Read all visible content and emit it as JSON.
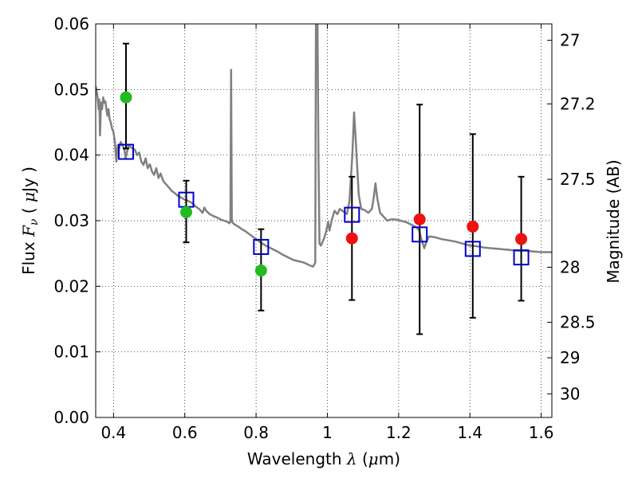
{
  "chart_data": {
    "type": "scatter",
    "xlabel_text": "Wavelength",
    "xlabel_symbol": "λ",
    "xlabel_unit_open": "(",
    "xlabel_unit_mu": "μ",
    "xlabel_unit_rest": "m)",
    "ylabel_text": "Flux",
    "ylabel_symbol_main": "F",
    "ylabel_symbol_sub": "ν",
    "ylabel_unit_open": "(",
    "ylabel_unit_mu": "μ",
    "ylabel_unit_rest": "Jy )",
    "y2label": "Magnitude (AB)",
    "xlim": [
      0.35,
      1.63
    ],
    "ylim": [
      0.0,
      0.06
    ],
    "grid": true,
    "x_ticks": [
      {
        "value": 0.4,
        "label": "0.4"
      },
      {
        "value": 0.6,
        "label": "0.6"
      },
      {
        "value": 0.8,
        "label": "0.8"
      },
      {
        "value": 1.0,
        "label": "1"
      },
      {
        "value": 1.2,
        "label": "1.2"
      },
      {
        "value": 1.4,
        "label": "1.4"
      },
      {
        "value": 1.6,
        "label": "1.6"
      }
    ],
    "y_ticks": [
      {
        "value": 0.0,
        "label": "0.00"
      },
      {
        "value": 0.01,
        "label": "0.01"
      },
      {
        "value": 0.02,
        "label": "0.02"
      },
      {
        "value": 0.03,
        "label": "0.03"
      },
      {
        "value": 0.04,
        "label": "0.04"
      },
      {
        "value": 0.05,
        "label": "0.05"
      },
      {
        "value": 0.06,
        "label": "0.06"
      }
    ],
    "y2_ticks": [
      {
        "label": "27",
        "flux": 0.0575
      },
      {
        "label": "27.2",
        "flux": 0.0478
      },
      {
        "label": "27.5",
        "flux": 0.0363
      },
      {
        "label": "28",
        "flux": 0.0229
      },
      {
        "label": "28.5",
        "flux": 0.0145
      },
      {
        "label": "29",
        "flux": 0.0091
      },
      {
        "label": "30",
        "flux": 0.0036
      }
    ],
    "model_spectrum": {
      "color": "#808080",
      "points": [
        [
          0.35,
          0.0505
        ],
        [
          0.355,
          0.049
        ],
        [
          0.358,
          0.047
        ],
        [
          0.36,
          0.0485
        ],
        [
          0.362,
          0.043
        ],
        [
          0.365,
          0.048
        ],
        [
          0.368,
          0.047
        ],
        [
          0.371,
          0.0488
        ],
        [
          0.374,
          0.048
        ],
        [
          0.377,
          0.0482
        ],
        [
          0.38,
          0.047
        ],
        [
          0.383,
          0.046
        ],
        [
          0.386,
          0.047
        ],
        [
          0.389,
          0.0455
        ],
        [
          0.392,
          0.045
        ],
        [
          0.396,
          0.044
        ],
        [
          0.4,
          0.0435
        ],
        [
          0.404,
          0.042
        ],
        [
          0.408,
          0.039
        ],
        [
          0.412,
          0.0415
        ],
        [
          0.416,
          0.041
        ],
        [
          0.42,
          0.042
        ],
        [
          0.425,
          0.0415
        ],
        [
          0.43,
          0.041
        ],
        [
          0.434,
          0.0395
        ],
        [
          0.438,
          0.0405
        ],
        [
          0.442,
          0.0415
        ],
        [
          0.448,
          0.0412
        ],
        [
          0.454,
          0.041
        ],
        [
          0.46,
          0.0408
        ],
        [
          0.466,
          0.04
        ],
        [
          0.472,
          0.0404
        ],
        [
          0.478,
          0.039
        ],
        [
          0.484,
          0.0385
        ],
        [
          0.49,
          0.0395
        ],
        [
          0.496,
          0.038
        ],
        [
          0.502,
          0.0386
        ],
        [
          0.508,
          0.0375
        ],
        [
          0.514,
          0.037
        ],
        [
          0.52,
          0.038
        ],
        [
          0.526,
          0.0365
        ],
        [
          0.532,
          0.0372
        ],
        [
          0.54,
          0.036
        ],
        [
          0.548,
          0.0355
        ],
        [
          0.556,
          0.035
        ],
        [
          0.564,
          0.0345
        ],
        [
          0.572,
          0.0342
        ],
        [
          0.58,
          0.0338
        ],
        [
          0.59,
          0.0335
        ],
        [
          0.6,
          0.0332
        ],
        [
          0.61,
          0.033
        ],
        [
          0.62,
          0.0327
        ],
        [
          0.63,
          0.0322
        ],
        [
          0.64,
          0.0318
        ],
        [
          0.65,
          0.0312
        ],
        [
          0.655,
          0.032
        ],
        [
          0.66,
          0.0315
        ],
        [
          0.67,
          0.031
        ],
        [
          0.68,
          0.0307
        ],
        [
          0.69,
          0.0305
        ],
        [
          0.7,
          0.0302
        ],
        [
          0.71,
          0.03
        ],
        [
          0.72,
          0.0298
        ],
        [
          0.725,
          0.0296
        ],
        [
          0.728,
          0.03
        ],
        [
          0.73,
          0.053
        ],
        [
          0.732,
          0.0298
        ],
        [
          0.74,
          0.0294
        ],
        [
          0.75,
          0.0291
        ],
        [
          0.76,
          0.0287
        ],
        [
          0.77,
          0.0284
        ],
        [
          0.78,
          0.028
        ],
        [
          0.79,
          0.0276
        ],
        [
          0.8,
          0.0272
        ],
        [
          0.815,
          0.0266
        ],
        [
          0.83,
          0.0261
        ],
        [
          0.845,
          0.0257
        ],
        [
          0.86,
          0.0253
        ],
        [
          0.875,
          0.0248
        ],
        [
          0.89,
          0.0244
        ],
        [
          0.905,
          0.024
        ],
        [
          0.92,
          0.0238
        ],
        [
          0.935,
          0.0236
        ],
        [
          0.95,
          0.0232
        ],
        [
          0.96,
          0.023
        ],
        [
          0.966,
          0.0236
        ],
        [
          0.968,
          0.062
        ],
        [
          0.972,
          0.062
        ],
        [
          0.975,
          0.04
        ],
        [
          0.978,
          0.0265
        ],
        [
          0.982,
          0.0262
        ],
        [
          0.99,
          0.0272
        ],
        [
          0.996,
          0.0282
        ],
        [
          1.002,
          0.0298
        ],
        [
          1.006,
          0.0285
        ],
        [
          1.012,
          0.03
        ],
        [
          1.02,
          0.0315
        ],
        [
          1.028,
          0.031
        ],
        [
          1.035,
          0.0318
        ],
        [
          1.045,
          0.0314
        ],
        [
          1.055,
          0.031
        ],
        [
          1.062,
          0.033
        ],
        [
          1.07,
          0.04
        ],
        [
          1.075,
          0.0465
        ],
        [
          1.08,
          0.042
        ],
        [
          1.088,
          0.034
        ],
        [
          1.095,
          0.0318
        ],
        [
          1.105,
          0.0316
        ],
        [
          1.115,
          0.0312
        ],
        [
          1.125,
          0.0318
        ],
        [
          1.13,
          0.0335
        ],
        [
          1.135,
          0.0357
        ],
        [
          1.14,
          0.0335
        ],
        [
          1.148,
          0.0312
        ],
        [
          1.158,
          0.0306
        ],
        [
          1.168,
          0.03
        ],
        [
          1.178,
          0.0302
        ],
        [
          1.19,
          0.0302
        ],
        [
          1.205,
          0.03
        ],
        [
          1.22,
          0.0298
        ],
        [
          1.235,
          0.0294
        ],
        [
          1.25,
          0.029
        ],
        [
          1.258,
          0.0285
        ],
        [
          1.262,
          0.0275
        ],
        [
          1.268,
          0.0265
        ],
        [
          1.272,
          0.0258
        ],
        [
          1.278,
          0.0268
        ],
        [
          1.285,
          0.0276
        ],
        [
          1.3,
          0.0275
        ],
        [
          1.32,
          0.0272
        ],
        [
          1.34,
          0.027
        ],
        [
          1.36,
          0.0268
        ],
        [
          1.38,
          0.0265
        ],
        [
          1.4,
          0.0262
        ],
        [
          1.42,
          0.0261
        ],
        [
          1.44,
          0.0259
        ],
        [
          1.46,
          0.0258
        ],
        [
          1.48,
          0.0257
        ],
        [
          1.5,
          0.0256
        ],
        [
          1.52,
          0.0255
        ],
        [
          1.54,
          0.0254
        ],
        [
          1.56,
          0.0254
        ],
        [
          1.58,
          0.0253
        ],
        [
          1.6,
          0.0252
        ],
        [
          1.63,
          0.0252
        ]
      ]
    },
    "model_photometry": {
      "color": "#0000cc",
      "points": [
        {
          "x": 0.435,
          "y": 0.0405,
          "err": [
            0.041,
            0.057
          ]
        },
        {
          "x": 0.604,
          "y": 0.0332,
          "err": [
            0.0267,
            0.0361
          ]
        },
        {
          "x": 0.814,
          "y": 0.026,
          "err": [
            0.0163,
            0.0287
          ]
        },
        {
          "x": 1.069,
          "y": 0.0309,
          "err": [
            0.0179,
            0.0367
          ]
        },
        {
          "x": 1.259,
          "y": 0.0279,
          "err": [
            0.0127,
            0.0477
          ]
        },
        {
          "x": 1.408,
          "y": 0.0257,
          "err": [
            0.0152,
            0.0432
          ]
        },
        {
          "x": 1.544,
          "y": 0.0244,
          "err": [
            0.0178,
            0.0367
          ]
        }
      ]
    },
    "observed_optical": {
      "color": "#22bb22",
      "points": [
        {
          "x": 0.435,
          "y": 0.0488
        },
        {
          "x": 0.604,
          "y": 0.0313
        },
        {
          "x": 0.814,
          "y": 0.0224
        }
      ]
    },
    "observed_nir": {
      "color": "#ee1111",
      "points": [
        {
          "x": 1.069,
          "y": 0.0273
        },
        {
          "x": 1.259,
          "y": 0.0302
        },
        {
          "x": 1.408,
          "y": 0.0291
        },
        {
          "x": 1.544,
          "y": 0.0272
        }
      ]
    }
  }
}
